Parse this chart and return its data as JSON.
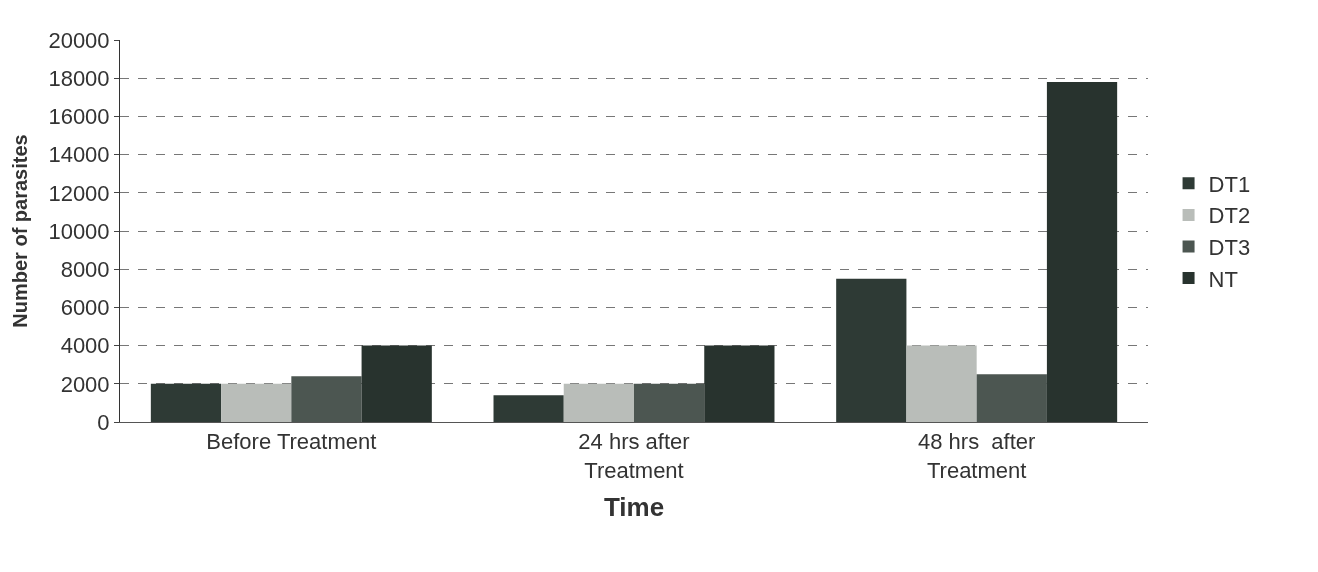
{
  "chart_data": {
    "type": "bar",
    "xlabel": "Time",
    "ylabel": "Number of parasites",
    "categories": [
      "Before Treatment",
      "24 hrs after\nTreatment",
      "48 hrs  after\nTreatment"
    ],
    "series": [
      {
        "name": "DT1",
        "color": "#2e3a35",
        "values": [
          2000,
          1400,
          7500
        ]
      },
      {
        "name": "DT2",
        "color": "#b9bdb9",
        "values": [
          2000,
          2000,
          4000
        ]
      },
      {
        "name": "DT3",
        "color": "#4c5651",
        "values": [
          2400,
          2000,
          2500
        ]
      },
      {
        "name": "NT",
        "color": "#28332e",
        "values": [
          4000,
          4000,
          17800
        ]
      }
    ],
    "ylim": [
      0,
      20000
    ],
    "yticks": [
      0,
      2000,
      4000,
      6000,
      8000,
      10000,
      12000,
      14000,
      16000,
      18000,
      20000
    ],
    "grid": "y",
    "legend": "right"
  }
}
